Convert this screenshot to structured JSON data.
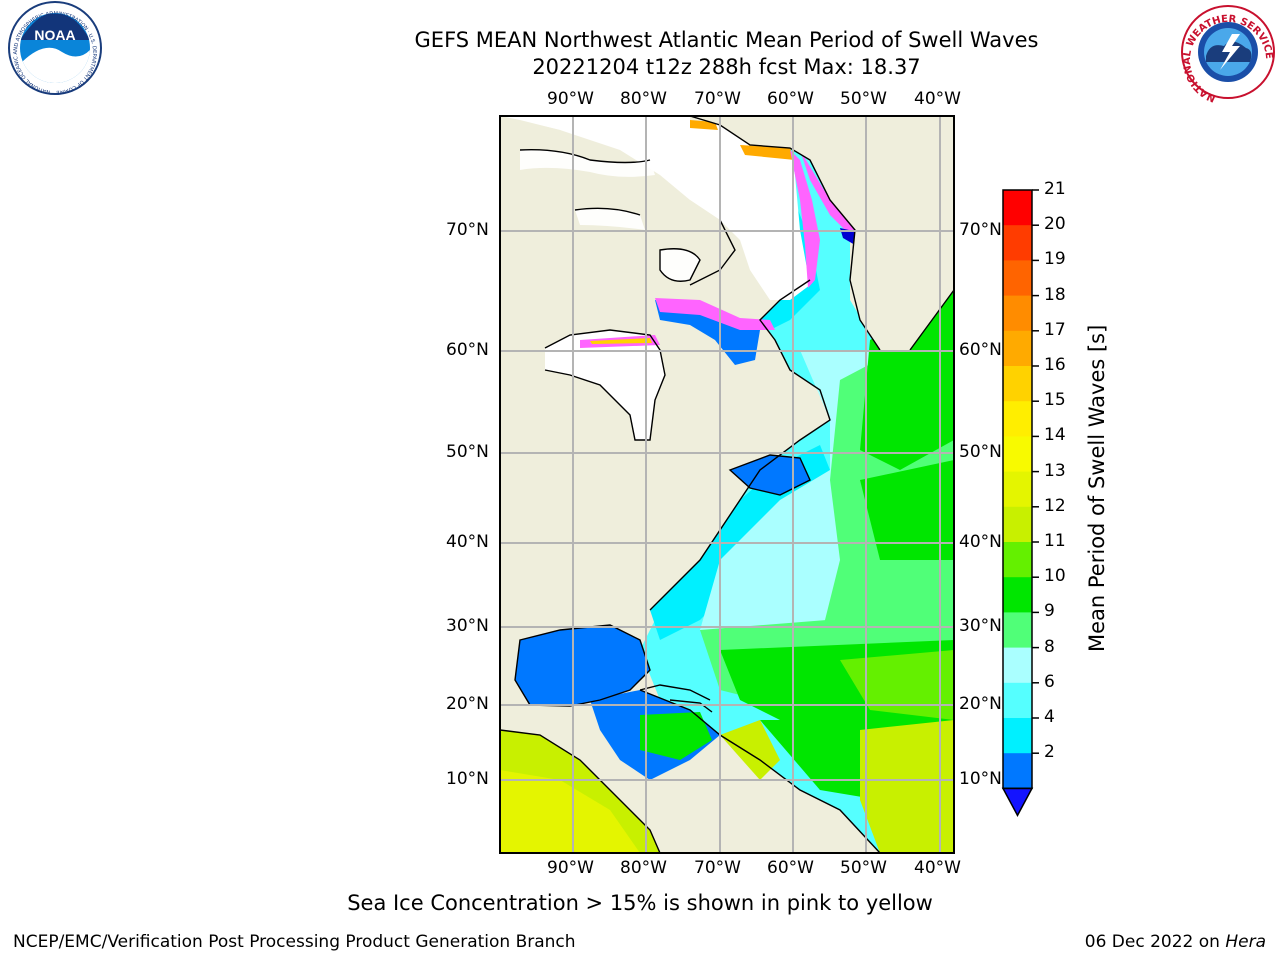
{
  "title": {
    "line1": "GEFS MEAN Northwest Atlantic Mean Period of Swell Waves",
    "line2": "20221204 t12z 288h fcst   Max: 18.37"
  },
  "map": {
    "lon_labels": [
      "90°W",
      "80°W",
      "70°W",
      "60°W",
      "50°W",
      "40°W"
    ],
    "lat_labels": [
      "70°N",
      "60°N",
      "50°N",
      "40°N",
      "30°N",
      "20°N",
      "10°N"
    ],
    "land_color": "#efeedc",
    "ice_color": "#ffffff"
  },
  "colorbar": {
    "label": "Mean Period of Swell Waves [s]",
    "ticks": [
      "21",
      "20",
      "19",
      "18",
      "17",
      "16",
      "15",
      "14",
      "13",
      "12",
      "11",
      "10",
      "9",
      "8",
      "6",
      "4",
      "2"
    ],
    "colors": [
      "#ff0000",
      "#ff3c00",
      "#ff6400",
      "#ff8c00",
      "#ffaa00",
      "#ffd200",
      "#ffee00",
      "#f8fa00",
      "#e4f500",
      "#c8f000",
      "#64f000",
      "#00e600",
      "#50ff78",
      "#aaffff",
      "#55ffff",
      "#00f0ff",
      "#0078ff"
    ],
    "under_color": "#1414ff"
  },
  "caption": "Sea Ice Concentration > 15% is shown in pink to yellow",
  "footer": {
    "left": "NCEP/EMC/Verification Post Processing Product Generation Branch",
    "date": "06 Dec 2022 on",
    "host": "Hera"
  },
  "logos": {
    "left": {
      "text": "NOAA",
      "ring_text": "NATIONAL OCEANIC AND ATMOSPHERIC ADMINISTRATION · U.S. DEPARTMENT OF COMMERCE"
    },
    "right": {
      "ring_text": "NATIONAL WEATHER SERVICE"
    }
  }
}
